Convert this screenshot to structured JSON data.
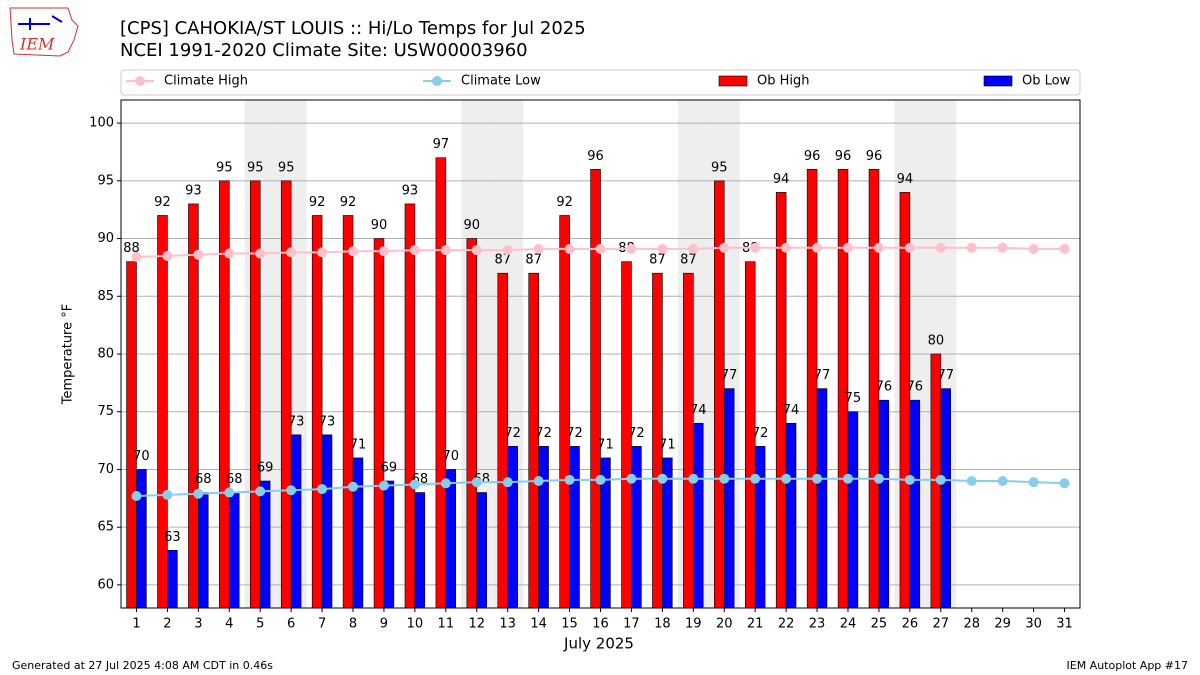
{
  "chart_data": {
    "type": "bar",
    "title": "[CPS] CAHOKIA/ST LOUIS :: Hi/Lo Temps for Jul 2025",
    "subtitle": "NCEI 1991-2020 Climate Site: USW00003960",
    "logo_text": "IEM",
    "xlabel": "July 2025",
    "ylabel": "Temperature °F",
    "footer_left": "Generated at 27 Jul 2025 4:08 AM CDT in 0.46s",
    "footer_right": "IEM Autoplot App #17",
    "x": [
      1,
      2,
      3,
      4,
      5,
      6,
      7,
      8,
      9,
      10,
      11,
      12,
      13,
      14,
      15,
      16,
      17,
      18,
      19,
      20,
      21,
      22,
      23,
      24,
      25,
      26,
      27,
      28,
      29,
      30,
      31
    ],
    "xlim": [
      0.5,
      31.5
    ],
    "xticks": [
      1,
      2,
      3,
      4,
      5,
      6,
      7,
      8,
      9,
      10,
      11,
      12,
      13,
      14,
      15,
      16,
      17,
      18,
      19,
      20,
      21,
      22,
      23,
      24,
      25,
      26,
      27,
      28,
      29,
      30,
      31
    ],
    "ylim": [
      58,
      102
    ],
    "yticks": [
      60,
      65,
      70,
      75,
      80,
      85,
      90,
      95,
      100
    ],
    "grid": true,
    "weekend_days": [
      5,
      6,
      12,
      13,
      19,
      20,
      26,
      27
    ],
    "series": [
      {
        "name": "Climate High",
        "type": "line",
        "color": "#ffc0cb",
        "values": [
          88.4,
          88.5,
          88.6,
          88.7,
          88.7,
          88.8,
          88.8,
          88.9,
          88.9,
          89.0,
          89.0,
          89.0,
          89.0,
          89.1,
          89.1,
          89.1,
          89.1,
          89.1,
          89.1,
          89.2,
          89.2,
          89.2,
          89.2,
          89.2,
          89.2,
          89.2,
          89.2,
          89.2,
          89.2,
          89.1,
          89.1
        ]
      },
      {
        "name": "Climate Low",
        "type": "line",
        "color": "#87ceeb",
        "values": [
          67.7,
          67.8,
          67.9,
          68.0,
          68.1,
          68.2,
          68.3,
          68.5,
          68.6,
          68.7,
          68.8,
          68.9,
          68.9,
          69.0,
          69.1,
          69.1,
          69.2,
          69.2,
          69.2,
          69.2,
          69.2,
          69.2,
          69.2,
          69.2,
          69.2,
          69.1,
          69.1,
          69.0,
          69.0,
          68.9,
          68.8
        ]
      },
      {
        "name": "Ob High",
        "type": "bar",
        "color": "#ff0000",
        "values": [
          88,
          92,
          93,
          95,
          95,
          95,
          92,
          92,
          90,
          93,
          97,
          90,
          87,
          87,
          92,
          96,
          88,
          87,
          87,
          95,
          88,
          94,
          96,
          96,
          96,
          94,
          80,
          null,
          null,
          null,
          null
        ]
      },
      {
        "name": "Ob Low",
        "type": "bar",
        "color": "#0000ff",
        "values": [
          70,
          63,
          68,
          68,
          69,
          73,
          73,
          71,
          69,
          68,
          70,
          68,
          72,
          72,
          72,
          71,
          72,
          71,
          74,
          77,
          72,
          74,
          77,
          75,
          76,
          76,
          77,
          null,
          null,
          null,
          null
        ]
      }
    ]
  }
}
